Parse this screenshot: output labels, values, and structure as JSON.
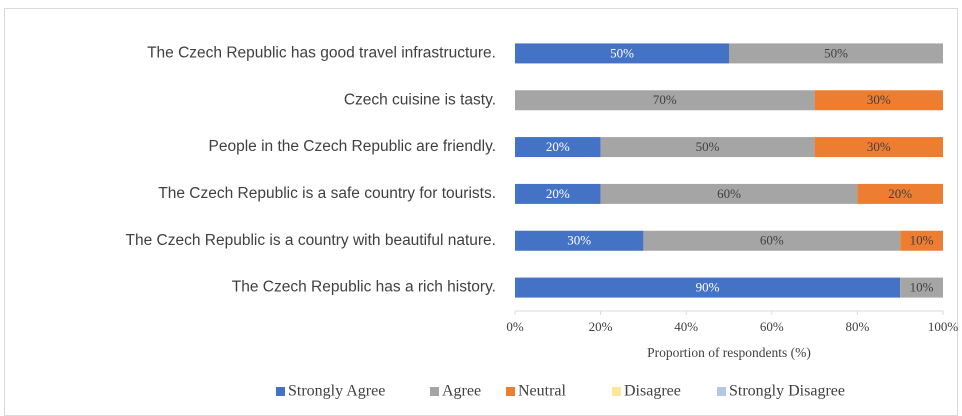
{
  "chart_data": {
    "type": "stacked-barh",
    "categories": [
      "The Czech Republic has good travel infrastructure.",
      "Czech cuisine is tasty.",
      "People in the Czech Republic are friendly.",
      "The Czech Republic is a safe country for tourists.",
      "The Czech Republic is a country with beautiful nature.",
      "The Czech Republic has a rich history."
    ],
    "series": [
      {
        "name": "Strongly Agree",
        "color": "#4472c4",
        "values": [
          50,
          0,
          20,
          20,
          30,
          90
        ],
        "value_labels": [
          "50%",
          null,
          "20%",
          "20%",
          "30%",
          "90%"
        ]
      },
      {
        "name": "Agree",
        "color": "#a5a5a5",
        "values": [
          50,
          70,
          50,
          60,
          60,
          10
        ],
        "value_labels": [
          "50%",
          "70%",
          "50%",
          "60%",
          "60%",
          "10%"
        ]
      },
      {
        "name": "Neutral",
        "color": "#ed7d31",
        "values": [
          0,
          30,
          30,
          20,
          10,
          0
        ],
        "value_labels": [
          null,
          "30%",
          "30%",
          "20%",
          "10%",
          null
        ]
      },
      {
        "name": "Disagree",
        "color": "#ffe699",
        "values": [
          0,
          0,
          0,
          0,
          0,
          0
        ]
      },
      {
        "name": "Strongly Disagree",
        "color": "#b4c7e7",
        "values": [
          0,
          0,
          0,
          0,
          0,
          0
        ]
      }
    ],
    "xlim": [
      0,
      100
    ],
    "xticks": [
      {
        "value": 0,
        "label": "0%"
      },
      {
        "value": 20,
        "label": "20%"
      },
      {
        "value": 40,
        "label": "40%"
      },
      {
        "value": 60,
        "label": "60%"
      },
      {
        "value": 80,
        "label": "80%"
      },
      {
        "value": 100,
        "label": "100%"
      }
    ],
    "xlabel": "Proportion of respondents (%)",
    "legend": "bottom"
  }
}
